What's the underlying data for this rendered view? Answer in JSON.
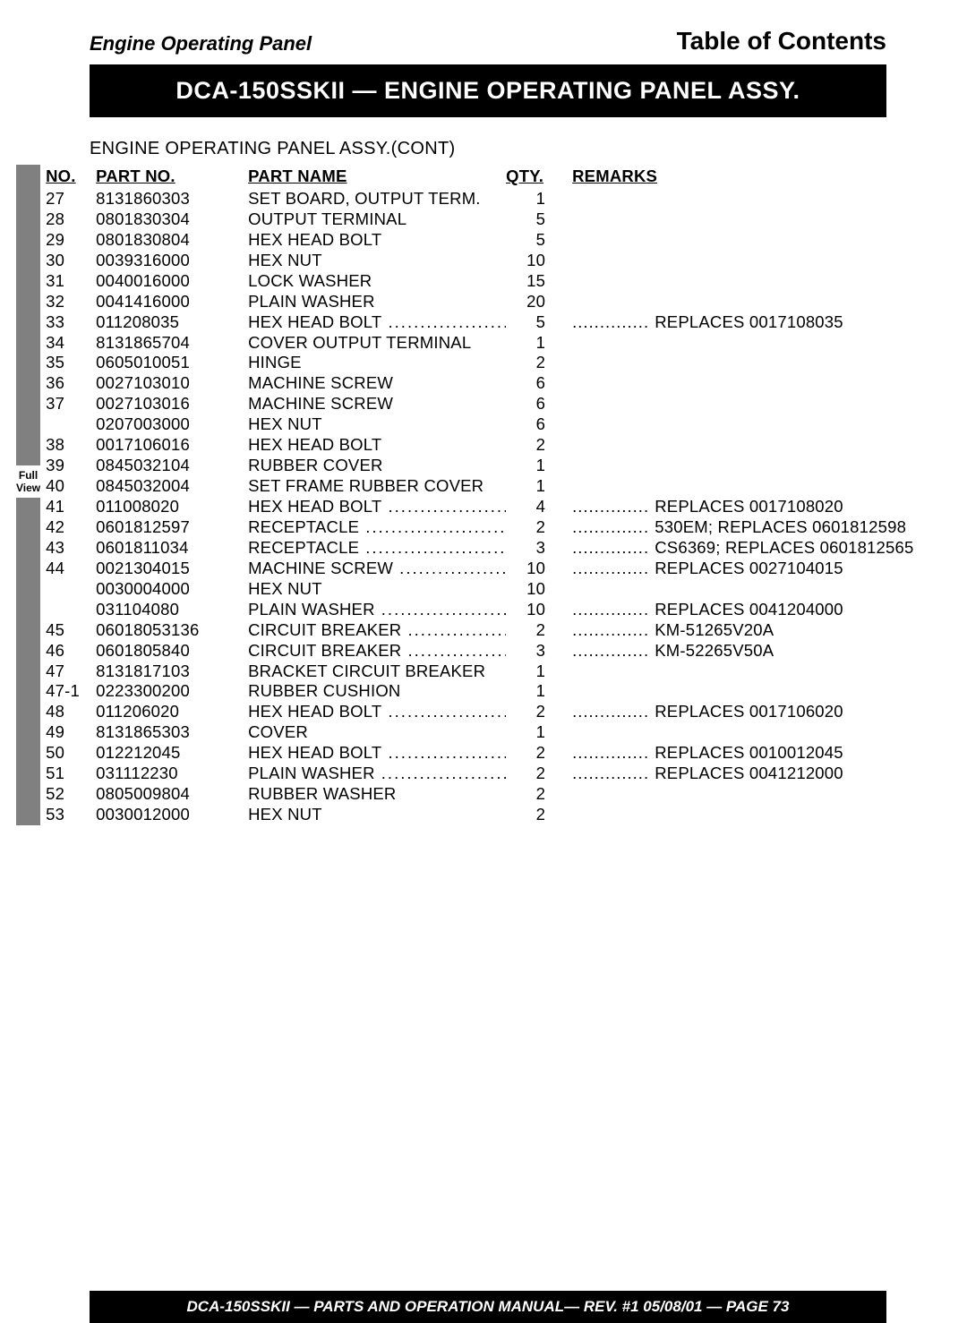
{
  "header": {
    "section_label": "Engine Operating Panel",
    "toc": "Table of Contents",
    "title": "DCA-150SSKII — ENGINE OPERATING PANEL ASSY.",
    "subtitle": "ENGINE OPERATING PANEL  ASSY.(CONT)"
  },
  "side": {
    "fullview": "Full View"
  },
  "columns": {
    "no": "NO.",
    "part": "PART NO.",
    "name": "PART NAME",
    "qty": "QTY.",
    "remarks": "REMARKS"
  },
  "rows": [
    {
      "no": "27",
      "part": "8131860303",
      "name": "SET BOARD, OUTPUT TERM.",
      "qty": "1",
      "rem": "",
      "dots": false
    },
    {
      "no": "28",
      "part": "0801830304",
      "name": "OUTPUT TERMINAL",
      "qty": "5",
      "rem": "",
      "dots": false
    },
    {
      "no": "29",
      "part": "0801830804",
      "name": "HEX HEAD BOLT",
      "qty": "5",
      "rem": "",
      "dots": false
    },
    {
      "no": "30",
      "part": "0039316000",
      "name": "HEX NUT",
      "qty": "10",
      "rem": "",
      "dots": false
    },
    {
      "no": "31",
      "part": "0040016000",
      "name": "LOCK WASHER",
      "qty": "15",
      "rem": "",
      "dots": false
    },
    {
      "no": "32",
      "part": "0041416000",
      "name": "PLAIN WASHER",
      "qty": "20",
      "rem": "",
      "dots": false
    },
    {
      "no": "33",
      "part": "011208035",
      "name": "HEX HEAD BOLT",
      "qty": "5",
      "rem": "REPLACES 0017108035",
      "dots": true
    },
    {
      "no": "34",
      "part": "8131865704",
      "name": "COVER  OUTPUT TERMINAL",
      "qty": "1",
      "rem": "",
      "dots": false
    },
    {
      "no": "35",
      "part": "0605010051",
      "name": "HINGE",
      "qty": "2",
      "rem": "",
      "dots": false
    },
    {
      "no": "36",
      "part": "0027103010",
      "name": "MACHINE SCREW",
      "qty": "6",
      "rem": "",
      "dots": false
    },
    {
      "no": "37",
      "part": "0027103016",
      "name": "MACHINE SCREW",
      "qty": "6",
      "rem": "",
      "dots": false
    },
    {
      "no": "",
      "part": "0207003000",
      "name": "HEX NUT",
      "qty": "6",
      "rem": "",
      "dots": false
    },
    {
      "no": "38",
      "part": "0017106016",
      "name": "HEX HEAD BOLT",
      "qty": "2",
      "rem": "",
      "dots": false
    },
    {
      "no": "39",
      "part": "0845032104",
      "name": "RUBBER COVER",
      "qty": "1",
      "rem": "",
      "dots": false
    },
    {
      "no": "40",
      "part": "0845032004",
      "name": "SET FRAME RUBBER COVER",
      "qty": "1",
      "rem": "",
      "dots": false
    },
    {
      "no": "41",
      "part": "011008020",
      "name": "HEX HEAD BOLT",
      "qty": "4",
      "rem": "REPLACES 0017108020",
      "dots": true
    },
    {
      "no": "42",
      "part": "0601812597",
      "name": "RECEPTACLE",
      "qty": "2",
      "rem": "530EM; REPLACES 0601812598",
      "dots": true
    },
    {
      "no": "43",
      "part": "0601811034",
      "name": "RECEPTACLE",
      "qty": "3",
      "rem": "CS6369; REPLACES 0601812565",
      "dots": true
    },
    {
      "no": "44",
      "part": "0021304015",
      "name": "MACHINE SCREW",
      "qty": "10",
      "rem": "REPLACES 0027104015",
      "dots": true
    },
    {
      "no": "",
      "part": "0030004000",
      "name": "HEX NUT",
      "qty": "10",
      "rem": "",
      "dots": false
    },
    {
      "no": "",
      "part": "031104080",
      "name": "PLAIN WASHER",
      "qty": "10",
      "rem": "REPLACES 0041204000",
      "dots": true
    },
    {
      "no": "45",
      "part": "06018053136",
      "name": "CIRCUIT BREAKER",
      "qty": "2",
      "rem": "KM-51265V20A",
      "dots": true
    },
    {
      "no": "46",
      "part": "0601805840",
      "name": "CIRCUIT BREAKER",
      "qty": "3",
      "rem": "KM-52265V50A",
      "dots": true
    },
    {
      "no": "47",
      "part": "8131817103",
      "name": "BRACKET CIRCUIT BREAKER",
      "qty": "1",
      "rem": "",
      "dots": false
    },
    {
      "no": "47-1",
      "part": "0223300200",
      "name": "RUBBER CUSHION",
      "qty": "1",
      "rem": "",
      "dots": false
    },
    {
      "no": "48",
      "part": "011206020",
      "name": "HEX HEAD BOLT",
      "qty": "2",
      "rem": "REPLACES 0017106020",
      "dots": true
    },
    {
      "no": "49",
      "part": "8131865303",
      "name": "COVER",
      "qty": "1",
      "rem": "",
      "dots": false
    },
    {
      "no": "50",
      "part": "012212045",
      "name": "HEX HEAD BOLT",
      "qty": "2",
      "rem": "REPLACES 0010012045",
      "dots": true
    },
    {
      "no": "51",
      "part": "031112230",
      "name": "PLAIN WASHER",
      "qty": "2",
      "rem": "REPLACES 0041212000",
      "dots": true
    },
    {
      "no": "52",
      "part": "0805009804",
      "name": "RUBBER WASHER",
      "qty": "2",
      "rem": "",
      "dots": false
    },
    {
      "no": "53",
      "part": "0030012000",
      "name": "HEX NUT",
      "qty": "2",
      "rem": "",
      "dots": false
    }
  ],
  "footer": "DCA-150SSKII — PARTS AND OPERATION  MANUAL— REV. #1  05/08/01 — PAGE 73",
  "colors": {
    "black": "#000000",
    "white": "#ffffff",
    "gray": "#808080"
  }
}
